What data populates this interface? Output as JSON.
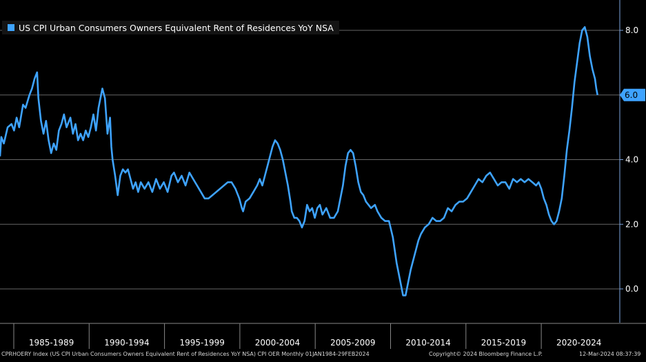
{
  "chart_data": {
    "type": "line",
    "series": [
      {
        "name": "US CPI Urban Consumers Owners Equivalent Rent of Residences YoY NSA",
        "color": "#3ea3ff",
        "points": [
          [
            1984.0,
            4.1
          ],
          [
            1984.1,
            4.7
          ],
          [
            1984.3,
            4.5
          ],
          [
            1984.6,
            5.0
          ],
          [
            1984.9,
            5.1
          ],
          [
            1985.1,
            4.9
          ],
          [
            1985.3,
            5.3
          ],
          [
            1985.5,
            5.0
          ],
          [
            1985.8,
            5.7
          ],
          [
            1986.0,
            5.6
          ],
          [
            1986.3,
            6.0
          ],
          [
            1986.5,
            6.2
          ],
          [
            1986.7,
            6.5
          ],
          [
            1986.9,
            6.7
          ],
          [
            1987.0,
            5.9
          ],
          [
            1987.2,
            5.2
          ],
          [
            1987.4,
            4.8
          ],
          [
            1987.6,
            5.2
          ],
          [
            1987.8,
            4.6
          ],
          [
            1988.0,
            4.2
          ],
          [
            1988.2,
            4.5
          ],
          [
            1988.4,
            4.3
          ],
          [
            1988.6,
            4.9
          ],
          [
            1988.8,
            5.1
          ],
          [
            1989.0,
            5.4
          ],
          [
            1989.2,
            5.0
          ],
          [
            1989.5,
            5.3
          ],
          [
            1989.7,
            4.8
          ],
          [
            1989.9,
            5.1
          ],
          [
            1990.1,
            4.6
          ],
          [
            1990.3,
            4.8
          ],
          [
            1990.5,
            4.6
          ],
          [
            1990.7,
            4.9
          ],
          [
            1990.9,
            4.7
          ],
          [
            1991.1,
            5.0
          ],
          [
            1991.3,
            5.4
          ],
          [
            1991.5,
            4.9
          ],
          [
            1991.7,
            5.6
          ],
          [
            1991.9,
            6.0
          ],
          [
            1992.0,
            6.2
          ],
          [
            1992.2,
            5.9
          ],
          [
            1992.4,
            4.8
          ],
          [
            1992.6,
            5.3
          ],
          [
            1992.7,
            4.4
          ],
          [
            1992.8,
            4.0
          ],
          [
            1993.0,
            3.5
          ],
          [
            1993.2,
            2.9
          ],
          [
            1993.4,
            3.5
          ],
          [
            1993.6,
            3.7
          ],
          [
            1993.8,
            3.6
          ],
          [
            1994.0,
            3.7
          ],
          [
            1994.2,
            3.4
          ],
          [
            1994.4,
            3.1
          ],
          [
            1994.6,
            3.3
          ],
          [
            1994.8,
            3.0
          ],
          [
            1995.0,
            3.3
          ],
          [
            1995.3,
            3.1
          ],
          [
            1995.6,
            3.3
          ],
          [
            1995.9,
            3.0
          ],
          [
            1996.2,
            3.4
          ],
          [
            1996.5,
            3.1
          ],
          [
            1996.8,
            3.3
          ],
          [
            1997.1,
            3.0
          ],
          [
            1997.4,
            3.5
          ],
          [
            1997.6,
            3.6
          ],
          [
            1997.9,
            3.3
          ],
          [
            1998.2,
            3.5
          ],
          [
            1998.5,
            3.2
          ],
          [
            1998.8,
            3.6
          ],
          [
            1999.1,
            3.4
          ],
          [
            1999.4,
            3.2
          ],
          [
            1999.7,
            3.0
          ],
          [
            2000.0,
            2.8
          ],
          [
            2000.3,
            2.8
          ],
          [
            2000.6,
            2.9
          ],
          [
            2000.9,
            3.0
          ],
          [
            2001.2,
            3.1
          ],
          [
            2001.5,
            3.2
          ],
          [
            2001.8,
            3.3
          ],
          [
            2002.1,
            3.3
          ],
          [
            2002.4,
            3.1
          ],
          [
            2002.7,
            2.8
          ],
          [
            2002.9,
            2.5
          ],
          [
            2003.0,
            2.4
          ],
          [
            2003.2,
            2.7
          ],
          [
            2003.5,
            2.8
          ],
          [
            2003.8,
            3.0
          ],
          [
            2004.1,
            3.2
          ],
          [
            2004.3,
            3.4
          ],
          [
            2004.5,
            3.2
          ],
          [
            2004.7,
            3.5
          ],
          [
            2004.9,
            3.8
          ],
          [
            2005.1,
            4.1
          ],
          [
            2005.3,
            4.4
          ],
          [
            2005.5,
            4.6
          ],
          [
            2005.7,
            4.5
          ],
          [
            2005.9,
            4.3
          ],
          [
            2006.1,
            4.0
          ],
          [
            2006.3,
            3.6
          ],
          [
            2006.5,
            3.2
          ],
          [
            2006.7,
            2.7
          ],
          [
            2006.8,
            2.4
          ],
          [
            2007.0,
            2.2
          ],
          [
            2007.2,
            2.2
          ],
          [
            2007.4,
            2.1
          ],
          [
            2007.6,
            1.9
          ],
          [
            2007.8,
            2.1
          ],
          [
            2008.0,
            2.6
          ],
          [
            2008.2,
            2.4
          ],
          [
            2008.4,
            2.5
          ],
          [
            2008.6,
            2.2
          ],
          [
            2008.8,
            2.5
          ],
          [
            2009.0,
            2.6
          ],
          [
            2009.2,
            2.3
          ],
          [
            2009.5,
            2.5
          ],
          [
            2009.8,
            2.2
          ],
          [
            2010.1,
            2.2
          ],
          [
            2010.4,
            2.4
          ],
          [
            2010.6,
            2.8
          ],
          [
            2010.8,
            3.2
          ],
          [
            2011.0,
            3.8
          ],
          [
            2011.2,
            4.2
          ],
          [
            2011.4,
            4.3
          ],
          [
            2011.6,
            4.2
          ],
          [
            2011.8,
            3.8
          ],
          [
            2012.0,
            3.3
          ],
          [
            2012.2,
            3.0
          ],
          [
            2012.4,
            2.9
          ],
          [
            2012.6,
            2.7
          ],
          [
            2012.8,
            2.6
          ],
          [
            2013.0,
            2.5
          ],
          [
            2013.3,
            2.6
          ],
          [
            2013.5,
            2.4
          ],
          [
            2013.8,
            2.2
          ],
          [
            2014.1,
            2.1
          ],
          [
            2014.4,
            2.1
          ],
          [
            2014.7,
            1.6
          ],
          [
            2015.0,
            0.8
          ],
          [
            2015.3,
            0.2
          ],
          [
            2015.5,
            -0.2
          ],
          [
            2015.7,
            -0.2
          ],
          [
            2015.9,
            0.2
          ],
          [
            2016.1,
            0.6
          ],
          [
            2016.3,
            0.9
          ],
          [
            2016.5,
            1.2
          ],
          [
            2016.7,
            1.5
          ],
          [
            2016.9,
            1.7
          ],
          [
            2017.2,
            1.9
          ],
          [
            2017.5,
            2.0
          ],
          [
            2017.8,
            2.2
          ],
          [
            2018.1,
            2.1
          ],
          [
            2018.4,
            2.1
          ],
          [
            2018.7,
            2.2
          ],
          [
            2019.0,
            2.5
          ],
          [
            2019.3,
            2.4
          ],
          [
            2019.6,
            2.6
          ],
          [
            2019.9,
            2.7
          ],
          [
            2020.2,
            2.7
          ],
          [
            2020.5,
            2.8
          ],
          [
            2020.8,
            3.0
          ],
          [
            2021.1,
            3.2
          ],
          [
            2021.4,
            3.4
          ],
          [
            2021.7,
            3.3
          ],
          [
            2022.0,
            3.5
          ],
          [
            2022.3,
            3.6
          ],
          [
            2022.6,
            3.4
          ],
          [
            2022.9,
            3.2
          ],
          [
            2023.2,
            3.3
          ],
          [
            2023.5,
            3.3
          ],
          [
            2023.8,
            3.1
          ],
          [
            2024.1,
            3.4
          ],
          [
            2024.4,
            3.3
          ],
          [
            2024.7,
            3.4
          ],
          [
            2025.0,
            3.3
          ],
          [
            2025.3,
            3.4
          ],
          [
            2025.6,
            3.3
          ],
          [
            2025.9,
            3.2
          ],
          [
            2026.1,
            3.3
          ],
          [
            2026.3,
            3.1
          ],
          [
            2026.5,
            2.8
          ],
          [
            2026.7,
            2.6
          ],
          [
            2026.9,
            2.3
          ],
          [
            2027.1,
            2.1
          ],
          [
            2027.3,
            2.0
          ],
          [
            2027.5,
            2.1
          ],
          [
            2027.7,
            2.4
          ],
          [
            2027.9,
            2.8
          ],
          [
            2028.1,
            3.5
          ],
          [
            2028.3,
            4.3
          ],
          [
            2028.5,
            4.9
          ],
          [
            2028.7,
            5.6
          ],
          [
            2028.9,
            6.4
          ],
          [
            2029.1,
            7.0
          ],
          [
            2029.3,
            7.6
          ],
          [
            2029.5,
            8.0
          ],
          [
            2029.7,
            8.1
          ],
          [
            2029.9,
            7.8
          ],
          [
            2030.1,
            7.2
          ],
          [
            2030.3,
            6.8
          ],
          [
            2030.5,
            6.5
          ],
          [
            2030.6,
            6.2
          ],
          [
            2030.7,
            6.0
          ]
        ]
      }
    ],
    "xlim": [
      1984,
      2031.2
    ],
    "ylim": [
      -1.0,
      9.0
    ],
    "yticks": [
      0.0,
      2.0,
      4.0,
      6.0,
      8.0
    ],
    "ytick_labels": [
      "0.0",
      "2.0",
      "4.0",
      "6.0",
      "8.0"
    ],
    "period_labels": [
      "1985-1989",
      "1990-1994",
      "1995-1999",
      "2000-2004",
      "2005-2009",
      "2010-2014",
      "2015-2019",
      "2020-2024"
    ],
    "last_value_label": "6.0",
    "grid": true,
    "legend_position": "top-left",
    "background": "#000000",
    "gridline_color": "#666666",
    "axis_color": "#7ea6e0"
  },
  "footer": {
    "description": "CPRHOERY Index (US CPI Urban Consumers Owners Equivalent Rent of Residences YoY NSA) CPI OER  Monthly 01JAN1984-29FEB2024",
    "copyright": "Copyright© 2024 Bloomberg Finance L.P.",
    "timestamp": "12-Mar-2024 08:37:39"
  }
}
